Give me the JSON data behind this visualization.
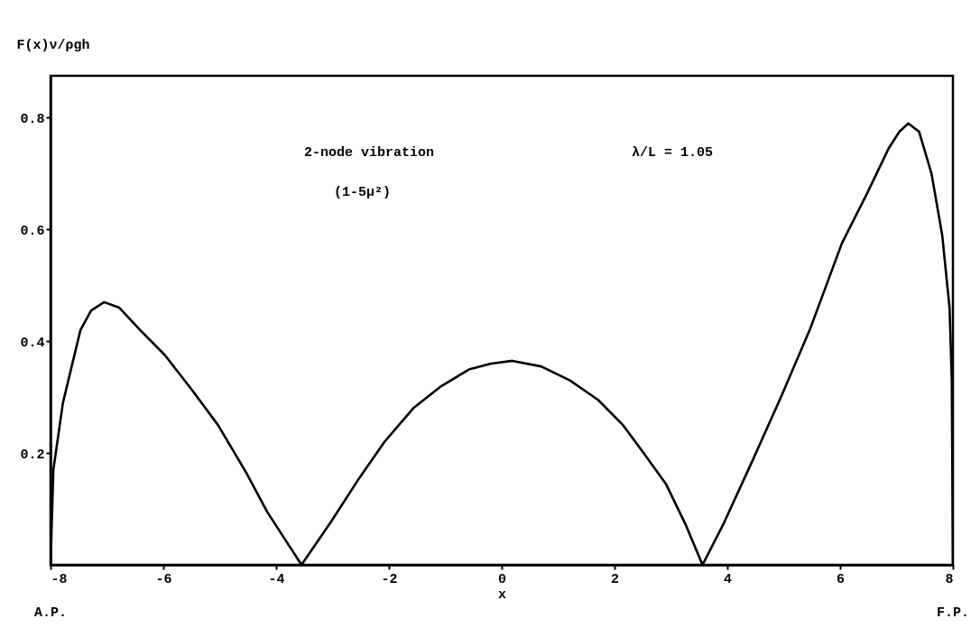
{
  "chart_data": {
    "type": "line",
    "xlabel": "x",
    "ylabel": "F(x)ν/ρgh",
    "x": [
      -8,
      -7.95,
      -7.78,
      -7.47,
      -7.28,
      -7.05,
      -6.78,
      -6.41,
      -5.97,
      -5.47,
      -5.03,
      -4.53,
      -4.16,
      -3.55,
      -3.04,
      -2.56,
      -2.08,
      -1.57,
      -1.07,
      -0.57,
      -0.19,
      0.19,
      0.7,
      1.21,
      1.71,
      2.15,
      2.48,
      2.91,
      3.27,
      3.56,
      3.94,
      4.44,
      4.95,
      5.46,
      6.03,
      6.48,
      6.86,
      7.05,
      7.21,
      7.4,
      7.62,
      7.81,
      7.94,
      7.98,
      8
    ],
    "series": [
      {
        "color": "#000000",
        "values": [
          0,
          0.17,
          0.29,
          0.42,
          0.455,
          0.47,
          0.46,
          0.42,
          0.375,
          0.31,
          0.25,
          0.165,
          0.095,
          0,
          0.075,
          0.15,
          0.22,
          0.28,
          0.32,
          0.35,
          0.36,
          0.365,
          0.355,
          0.33,
          0.295,
          0.25,
          0.205,
          0.145,
          0.07,
          0,
          0.075,
          0.185,
          0.3,
          0.42,
          0.575,
          0.665,
          0.745,
          0.775,
          0.79,
          0.775,
          0.7,
          0.59,
          0.46,
          0.33,
          0
        ]
      }
    ],
    "xlim": [
      -8,
      8
    ],
    "ylim": [
      0,
      0.875
    ],
    "xticks": [
      -8,
      -6,
      -4,
      -2,
      0,
      2,
      4,
      6,
      8
    ],
    "yticks": [
      0.2,
      0.4,
      0.6,
      0.8
    ],
    "annotations": [
      "2-node vibration",
      "(1-5μ²)",
      "λ/L = 1.05",
      "A.P.",
      "F.P."
    ],
    "grid": false,
    "marker": "none",
    "line_style": "solid"
  }
}
